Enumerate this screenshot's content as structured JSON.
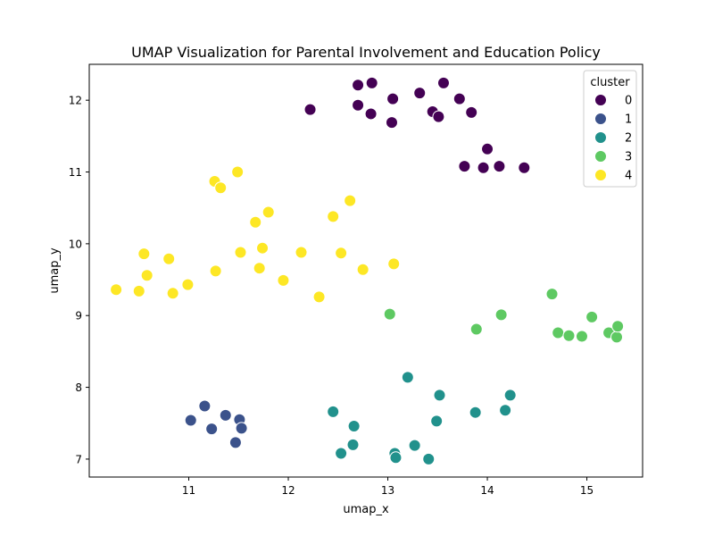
{
  "chart_data": {
    "type": "scatter",
    "title": "UMAP Visualization for Parental Involvement and Education Policy",
    "xlabel": "umap_x",
    "ylabel": "umap_y",
    "xlim": [
      10.0,
      15.56
    ],
    "ylim": [
      6.75,
      12.5
    ],
    "xticks": [
      11,
      12,
      13,
      14,
      15
    ],
    "yticks": [
      7,
      8,
      9,
      10,
      11,
      12
    ],
    "grid": false,
    "legend": {
      "title": "cluster",
      "position": "top-right"
    },
    "series": [
      {
        "name": "0",
        "color": "#440154",
        "points": [
          [
            12.22,
            11.87
          ],
          [
            12.7,
            12.21
          ],
          [
            12.84,
            12.24
          ],
          [
            12.7,
            11.93
          ],
          [
            12.83,
            11.81
          ],
          [
            13.04,
            11.69
          ],
          [
            13.05,
            12.02
          ],
          [
            13.32,
            12.1
          ],
          [
            13.45,
            11.84
          ],
          [
            13.51,
            11.77
          ],
          [
            13.56,
            12.24
          ],
          [
            13.72,
            12.02
          ],
          [
            13.84,
            11.83
          ],
          [
            13.77,
            11.08
          ],
          [
            13.96,
            11.06
          ],
          [
            14.0,
            11.32
          ],
          [
            14.12,
            11.08
          ],
          [
            14.37,
            11.06
          ]
        ]
      },
      {
        "name": "1",
        "color": "#3b528b",
        "points": [
          [
            11.02,
            7.54
          ],
          [
            11.16,
            7.74
          ],
          [
            11.23,
            7.42
          ],
          [
            11.37,
            7.61
          ],
          [
            11.47,
            7.23
          ],
          [
            11.51,
            7.55
          ],
          [
            11.53,
            7.43
          ]
        ]
      },
      {
        "name": "2",
        "color": "#21918c",
        "points": [
          [
            12.45,
            7.66
          ],
          [
            12.53,
            7.08
          ],
          [
            12.65,
            7.2
          ],
          [
            12.66,
            7.46
          ],
          [
            13.07,
            7.08
          ],
          [
            13.08,
            7.02
          ],
          [
            13.2,
            8.14
          ],
          [
            13.27,
            7.19
          ],
          [
            13.41,
            7.0
          ],
          [
            13.49,
            7.53
          ],
          [
            13.52,
            7.89
          ],
          [
            13.88,
            7.65
          ],
          [
            14.18,
            7.68
          ],
          [
            14.23,
            7.89
          ]
        ]
      },
      {
        "name": "3",
        "color": "#5ec962",
        "points": [
          [
            13.02,
            9.02
          ],
          [
            13.89,
            8.81
          ],
          [
            14.14,
            9.01
          ],
          [
            14.65,
            9.3
          ],
          [
            14.71,
            8.76
          ],
          [
            14.82,
            8.72
          ],
          [
            14.95,
            8.71
          ],
          [
            15.05,
            8.98
          ],
          [
            15.22,
            8.76
          ],
          [
            15.3,
            8.7
          ],
          [
            15.31,
            8.85
          ]
        ]
      },
      {
        "name": "4",
        "color": "#fde725",
        "points": [
          [
            10.27,
            9.36
          ],
          [
            10.5,
            9.34
          ],
          [
            10.55,
            9.86
          ],
          [
            10.58,
            9.56
          ],
          [
            10.8,
            9.79
          ],
          [
            10.84,
            9.31
          ],
          [
            10.99,
            9.43
          ],
          [
            11.26,
            10.87
          ],
          [
            11.27,
            9.62
          ],
          [
            11.32,
            10.78
          ],
          [
            11.49,
            11.0
          ],
          [
            11.52,
            9.88
          ],
          [
            11.67,
            10.3
          ],
          [
            11.71,
            9.66
          ],
          [
            11.74,
            9.94
          ],
          [
            11.8,
            10.44
          ],
          [
            11.95,
            9.49
          ],
          [
            12.13,
            9.88
          ],
          [
            12.31,
            9.26
          ],
          [
            12.45,
            10.38
          ],
          [
            12.53,
            9.87
          ],
          [
            12.62,
            10.6
          ],
          [
            12.75,
            9.64
          ],
          [
            13.06,
            9.72
          ]
        ]
      }
    ]
  }
}
